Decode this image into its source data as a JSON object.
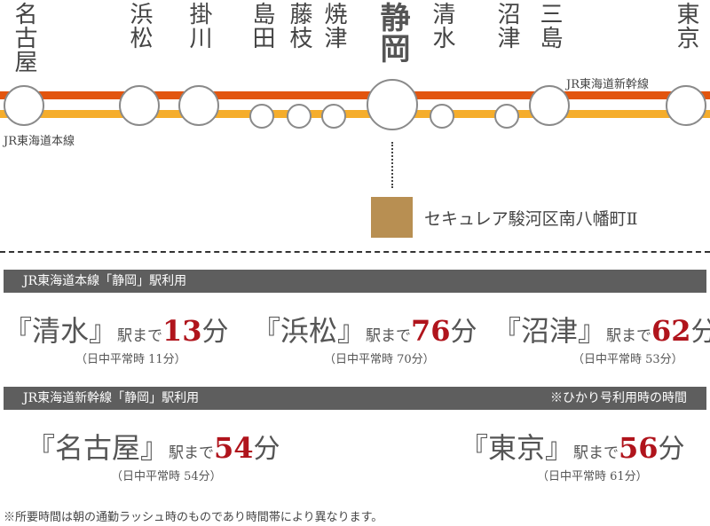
{
  "stations": [
    {
      "name": "名古屋",
      "big": true
    },
    {
      "name": "浜松",
      "big": true
    },
    {
      "name": "掛川",
      "big": true
    },
    {
      "name": "島田",
      "big": false
    },
    {
      "name": "藤枝",
      "big": false
    },
    {
      "name": "焼津",
      "big": false
    },
    {
      "name": "静岡",
      "big": true,
      "main": true
    },
    {
      "name": "清水",
      "big": false
    },
    {
      "name": "沼津",
      "big": false
    },
    {
      "name": "三島",
      "big": true
    },
    {
      "name": "東京",
      "big": true
    }
  ],
  "lines": {
    "shinkansen": {
      "label": "JR東海道新幹線",
      "color": "#e2550f"
    },
    "tokaido": {
      "label": "JR東海道本線",
      "color": "#f5ad2c"
    }
  },
  "property": {
    "name": "セキュレア駿河区南八幡町Ⅱ",
    "color": "#b88f52"
  },
  "section1": {
    "header": "JR東海道本線「静岡」駅利用",
    "rows": [
      {
        "station": "『清水』",
        "suffix": "駅まで",
        "minutes": "13",
        "unit": "分",
        "sub": "（日中平常時 11分）"
      },
      {
        "station": "『浜松』",
        "suffix": "駅まで",
        "minutes": "76",
        "unit": "分",
        "sub": "（日中平常時 70分）"
      },
      {
        "station": "『沼津』",
        "suffix": "駅まで",
        "minutes": "62",
        "unit": "分",
        "sub": "（日中平常時 53分）"
      }
    ]
  },
  "section2": {
    "header": "JR東海道新幹線「静岡」駅利用",
    "note": "※ひかり号利用時の時間",
    "rows": [
      {
        "station": "『名古屋』",
        "suffix": "駅まで",
        "minutes": "54",
        "unit": "分",
        "sub": "（日中平常時 54分）"
      },
      {
        "station": "『東京』",
        "suffix": "駅まで",
        "minutes": "56",
        "unit": "分",
        "sub": "（日中平常時 61分）"
      }
    ]
  },
  "footnote": "※所要時間は朝の通勤ラッシュ時のものであり時間帯により異なります。"
}
